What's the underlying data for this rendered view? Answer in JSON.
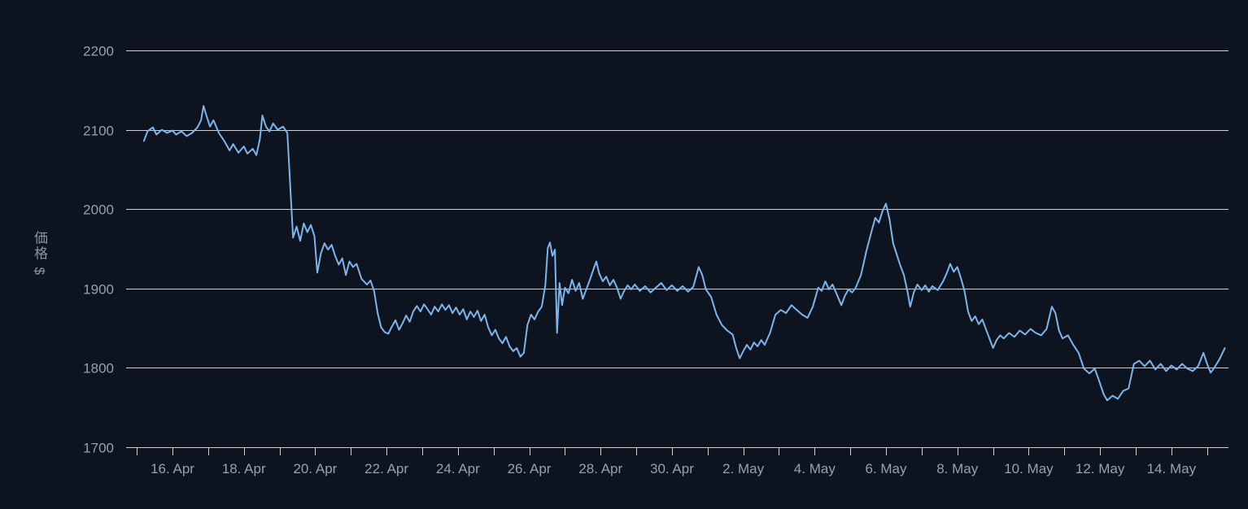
{
  "page": {
    "background": "#0d1420"
  },
  "colors": {
    "background": "#0d1420",
    "grid": "#ccd1d8",
    "tick": "#ccd1d8",
    "tick_label": "#98a0ab",
    "axis_title": "#8b939e"
  },
  "chart_data": {
    "type": "line",
    "title": "",
    "xlabel": "",
    "ylabel": "価格 $",
    "legend": false,
    "grid": true,
    "y_ticks": [
      1700,
      1800,
      1900,
      2000,
      2100,
      2200
    ],
    "y_range": [
      1700,
      2200
    ],
    "x_range": [
      -0.3,
      30.6
    ],
    "x_ticks": [
      {
        "d": 1,
        "label": "16. Apr"
      },
      {
        "d": 3,
        "label": "18. Apr"
      },
      {
        "d": 5,
        "label": "20. Apr"
      },
      {
        "d": 7,
        "label": "22. Apr"
      },
      {
        "d": 9,
        "label": "24. Apr"
      },
      {
        "d": 11,
        "label": "26. Apr"
      },
      {
        "d": 13,
        "label": "28. Apr"
      },
      {
        "d": 15,
        "label": "30. Apr"
      },
      {
        "d": 17,
        "label": "2. May"
      },
      {
        "d": 19,
        "label": "4. May"
      },
      {
        "d": 21,
        "label": "6. May"
      },
      {
        "d": 23,
        "label": "8. May"
      },
      {
        "d": 25,
        "label": "10. May"
      },
      {
        "d": 27,
        "label": "12. May"
      },
      {
        "d": 29,
        "label": "14. May"
      }
    ],
    "minor_tick_every_days": 1,
    "series": [
      {
        "name": "価格",
        "color": "#7cb5ec",
        "width": 2,
        "points": [
          [
            0.2,
            2086
          ],
          [
            0.3,
            2098
          ],
          [
            0.45,
            2103
          ],
          [
            0.55,
            2094
          ],
          [
            0.7,
            2100
          ],
          [
            0.85,
            2096
          ],
          [
            1.0,
            2099
          ],
          [
            1.1,
            2094
          ],
          [
            1.25,
            2098
          ],
          [
            1.4,
            2092
          ],
          [
            1.55,
            2096
          ],
          [
            1.7,
            2103
          ],
          [
            1.8,
            2112
          ],
          [
            1.87,
            2130
          ],
          [
            1.95,
            2118
          ],
          [
            2.05,
            2104
          ],
          [
            2.15,
            2112
          ],
          [
            2.3,
            2096
          ],
          [
            2.45,
            2086
          ],
          [
            2.6,
            2074
          ],
          [
            2.7,
            2082
          ],
          [
            2.85,
            2071
          ],
          [
            3.0,
            2079
          ],
          [
            3.1,
            2070
          ],
          [
            3.25,
            2076
          ],
          [
            3.35,
            2068
          ],
          [
            3.45,
            2088
          ],
          [
            3.52,
            2118
          ],
          [
            3.62,
            2104
          ],
          [
            3.72,
            2098
          ],
          [
            3.82,
            2108
          ],
          [
            3.95,
            2100
          ],
          [
            4.1,
            2104
          ],
          [
            4.22,
            2096
          ],
          [
            4.3,
            2030
          ],
          [
            4.38,
            1964
          ],
          [
            4.48,
            1978
          ],
          [
            4.58,
            1960
          ],
          [
            4.68,
            1982
          ],
          [
            4.78,
            1971
          ],
          [
            4.88,
            1980
          ],
          [
            4.98,
            1966
          ],
          [
            5.06,
            1920
          ],
          [
            5.16,
            1944
          ],
          [
            5.26,
            1957
          ],
          [
            5.36,
            1949
          ],
          [
            5.46,
            1955
          ],
          [
            5.56,
            1941
          ],
          [
            5.66,
            1930
          ],
          [
            5.76,
            1938
          ],
          [
            5.86,
            1917
          ],
          [
            5.96,
            1934
          ],
          [
            6.06,
            1927
          ],
          [
            6.16,
            1931
          ],
          [
            6.3,
            1912
          ],
          [
            6.45,
            1905
          ],
          [
            6.55,
            1910
          ],
          [
            6.65,
            1897
          ],
          [
            6.75,
            1869
          ],
          [
            6.85,
            1851
          ],
          [
            6.95,
            1845
          ],
          [
            7.05,
            1843
          ],
          [
            7.15,
            1852
          ],
          [
            7.25,
            1860
          ],
          [
            7.35,
            1848
          ],
          [
            7.45,
            1856
          ],
          [
            7.55,
            1866
          ],
          [
            7.65,
            1858
          ],
          [
            7.75,
            1871
          ],
          [
            7.85,
            1878
          ],
          [
            7.95,
            1871
          ],
          [
            8.05,
            1880
          ],
          [
            8.15,
            1874
          ],
          [
            8.25,
            1867
          ],
          [
            8.35,
            1877
          ],
          [
            8.45,
            1871
          ],
          [
            8.55,
            1880
          ],
          [
            8.65,
            1873
          ],
          [
            8.75,
            1879
          ],
          [
            8.85,
            1869
          ],
          [
            8.95,
            1876
          ],
          [
            9.05,
            1867
          ],
          [
            9.15,
            1874
          ],
          [
            9.25,
            1861
          ],
          [
            9.35,
            1871
          ],
          [
            9.45,
            1864
          ],
          [
            9.55,
            1872
          ],
          [
            9.65,
            1859
          ],
          [
            9.75,
            1867
          ],
          [
            9.85,
            1851
          ],
          [
            9.95,
            1841
          ],
          [
            10.05,
            1848
          ],
          [
            10.15,
            1837
          ],
          [
            10.25,
            1831
          ],
          [
            10.35,
            1839
          ],
          [
            10.45,
            1827
          ],
          [
            10.55,
            1821
          ],
          [
            10.65,
            1825
          ],
          [
            10.75,
            1814
          ],
          [
            10.85,
            1819
          ],
          [
            10.95,
            1854
          ],
          [
            11.05,
            1867
          ],
          [
            11.15,
            1861
          ],
          [
            11.25,
            1871
          ],
          [
            11.35,
            1877
          ],
          [
            11.45,
            1904
          ],
          [
            11.52,
            1951
          ],
          [
            11.58,
            1958
          ],
          [
            11.65,
            1941
          ],
          [
            11.72,
            1949
          ],
          [
            11.78,
            1844
          ],
          [
            11.85,
            1907
          ],
          [
            11.92,
            1879
          ],
          [
            12.0,
            1901
          ],
          [
            12.1,
            1894
          ],
          [
            12.2,
            1911
          ],
          [
            12.3,
            1897
          ],
          [
            12.4,
            1907
          ],
          [
            12.5,
            1887
          ],
          [
            12.6,
            1899
          ],
          [
            12.7,
            1911
          ],
          [
            12.8,
            1924
          ],
          [
            12.88,
            1934
          ],
          [
            12.96,
            1919
          ],
          [
            13.06,
            1909
          ],
          [
            13.16,
            1915
          ],
          [
            13.26,
            1904
          ],
          [
            13.36,
            1911
          ],
          [
            13.46,
            1901
          ],
          [
            13.56,
            1887
          ],
          [
            13.66,
            1897
          ],
          [
            13.76,
            1904
          ],
          [
            13.86,
            1899
          ],
          [
            13.96,
            1905
          ],
          [
            14.1,
            1897
          ],
          [
            14.25,
            1903
          ],
          [
            14.4,
            1895
          ],
          [
            14.55,
            1901
          ],
          [
            14.7,
            1907
          ],
          [
            14.85,
            1898
          ],
          [
            15.0,
            1904
          ],
          [
            15.15,
            1897
          ],
          [
            15.3,
            1903
          ],
          [
            15.45,
            1896
          ],
          [
            15.6,
            1902
          ],
          [
            15.75,
            1927
          ],
          [
            15.85,
            1917
          ],
          [
            15.95,
            1899
          ],
          [
            16.1,
            1889
          ],
          [
            16.25,
            1867
          ],
          [
            16.4,
            1854
          ],
          [
            16.55,
            1847
          ],
          [
            16.7,
            1842
          ],
          [
            16.8,
            1825
          ],
          [
            16.9,
            1812
          ],
          [
            17.0,
            1821
          ],
          [
            17.1,
            1829
          ],
          [
            17.2,
            1823
          ],
          [
            17.3,
            1832
          ],
          [
            17.4,
            1827
          ],
          [
            17.5,
            1835
          ],
          [
            17.6,
            1829
          ],
          [
            17.75,
            1844
          ],
          [
            17.9,
            1867
          ],
          [
            18.05,
            1873
          ],
          [
            18.2,
            1869
          ],
          [
            18.35,
            1879
          ],
          [
            18.5,
            1873
          ],
          [
            18.65,
            1867
          ],
          [
            18.8,
            1863
          ],
          [
            18.95,
            1877
          ],
          [
            19.1,
            1901
          ],
          [
            19.2,
            1897
          ],
          [
            19.3,
            1909
          ],
          [
            19.4,
            1899
          ],
          [
            19.5,
            1905
          ],
          [
            19.6,
            1895
          ],
          [
            19.75,
            1879
          ],
          [
            19.85,
            1891
          ],
          [
            19.95,
            1899
          ],
          [
            20.05,
            1895
          ],
          [
            20.15,
            1901
          ],
          [
            20.3,
            1917
          ],
          [
            20.45,
            1947
          ],
          [
            20.6,
            1973
          ],
          [
            20.7,
            1989
          ],
          [
            20.8,
            1983
          ],
          [
            20.9,
            1997
          ],
          [
            21.0,
            2007
          ],
          [
            21.1,
            1987
          ],
          [
            21.2,
            1957
          ],
          [
            21.3,
            1943
          ],
          [
            21.4,
            1929
          ],
          [
            21.5,
            1917
          ],
          [
            21.6,
            1897
          ],
          [
            21.68,
            1877
          ],
          [
            21.78,
            1895
          ],
          [
            21.88,
            1905
          ],
          [
            22.0,
            1898
          ],
          [
            22.1,
            1904
          ],
          [
            22.2,
            1896
          ],
          [
            22.3,
            1903
          ],
          [
            22.45,
            1898
          ],
          [
            22.6,
            1909
          ],
          [
            22.7,
            1919
          ],
          [
            22.8,
            1931
          ],
          [
            22.9,
            1921
          ],
          [
            23.0,
            1927
          ],
          [
            23.1,
            1913
          ],
          [
            23.2,
            1897
          ],
          [
            23.3,
            1871
          ],
          [
            23.4,
            1859
          ],
          [
            23.5,
            1865
          ],
          [
            23.6,
            1855
          ],
          [
            23.7,
            1861
          ],
          [
            23.8,
            1849
          ],
          [
            23.9,
            1837
          ],
          [
            24.0,
            1825
          ],
          [
            24.1,
            1835
          ],
          [
            24.2,
            1841
          ],
          [
            24.3,
            1837
          ],
          [
            24.45,
            1844
          ],
          [
            24.6,
            1839
          ],
          [
            24.75,
            1847
          ],
          [
            24.9,
            1842
          ],
          [
            25.05,
            1849
          ],
          [
            25.2,
            1844
          ],
          [
            25.35,
            1841
          ],
          [
            25.5,
            1849
          ],
          [
            25.65,
            1877
          ],
          [
            25.75,
            1869
          ],
          [
            25.85,
            1847
          ],
          [
            25.95,
            1837
          ],
          [
            26.1,
            1841
          ],
          [
            26.25,
            1829
          ],
          [
            26.4,
            1819
          ],
          [
            26.55,
            1799
          ],
          [
            26.7,
            1793
          ],
          [
            26.85,
            1799
          ],
          [
            26.95,
            1787
          ],
          [
            27.1,
            1767
          ],
          [
            27.2,
            1759
          ],
          [
            27.35,
            1765
          ],
          [
            27.5,
            1761
          ],
          [
            27.65,
            1771
          ],
          [
            27.8,
            1774
          ],
          [
            27.95,
            1805
          ],
          [
            28.1,
            1809
          ],
          [
            28.25,
            1802
          ],
          [
            28.4,
            1809
          ],
          [
            28.55,
            1798
          ],
          [
            28.7,
            1805
          ],
          [
            28.85,
            1796
          ],
          [
            29.0,
            1803
          ],
          [
            29.15,
            1798
          ],
          [
            29.3,
            1805
          ],
          [
            29.45,
            1799
          ],
          [
            29.6,
            1796
          ],
          [
            29.75,
            1802
          ],
          [
            29.9,
            1819
          ],
          [
            30.0,
            1805
          ],
          [
            30.1,
            1794
          ],
          [
            30.2,
            1800
          ],
          [
            30.35,
            1811
          ],
          [
            30.5,
            1825
          ]
        ]
      }
    ]
  }
}
